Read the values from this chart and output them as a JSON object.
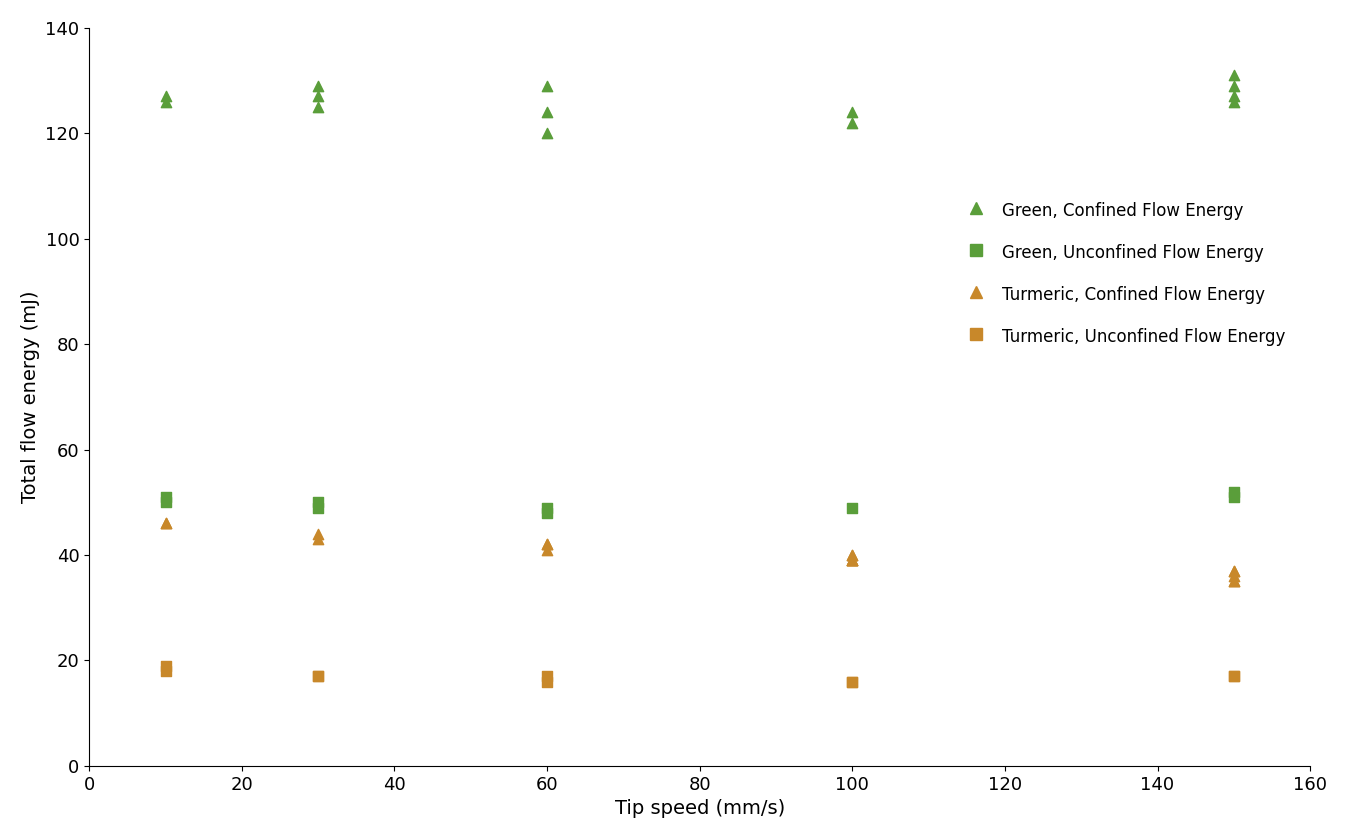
{
  "green_confined_x": [
    10,
    10,
    30,
    30,
    30,
    60,
    60,
    60,
    100,
    100,
    150,
    150,
    150,
    150
  ],
  "green_confined_y": [
    127,
    126,
    129,
    127,
    125,
    129,
    124,
    120,
    124,
    122,
    131,
    129,
    127,
    126
  ],
  "green_unconfined_x": [
    10,
    10,
    30,
    30,
    60,
    60,
    100,
    150,
    150
  ],
  "green_unconfined_y": [
    51,
    50,
    50,
    49,
    49,
    48,
    49,
    52,
    51
  ],
  "turmeric_confined_x": [
    10,
    10,
    30,
    30,
    60,
    60,
    60,
    100,
    100,
    100,
    100,
    100,
    100,
    150,
    150,
    150,
    150,
    150
  ],
  "turmeric_confined_y": [
    46,
    46,
    44,
    43,
    42,
    42,
    41,
    40,
    40,
    39,
    39,
    39,
    39,
    37,
    37,
    36,
    35,
    35
  ],
  "turmeric_unconfined_x": [
    10,
    10,
    30,
    30,
    60,
    60,
    100,
    100,
    150,
    150
  ],
  "turmeric_unconfined_y": [
    19,
    18,
    17,
    17,
    17,
    16,
    16,
    16,
    17,
    17
  ],
  "green_color": "#5a9e3a",
  "turmeric_color": "#c8882a",
  "xlabel": "Tip speed (mm/s)",
  "ylabel": "Total flow energy (mJ)",
  "xlim": [
    0,
    160
  ],
  "ylim": [
    0,
    140
  ],
  "xticks": [
    0,
    20,
    40,
    60,
    80,
    100,
    120,
    140,
    160
  ],
  "yticks": [
    0,
    20,
    40,
    60,
    80,
    100,
    120,
    140
  ],
  "legend_entries": [
    "Green, Confined Flow Energy",
    "Green, Unconfined Flow Energy",
    "Turmeric, Confined Flow Energy",
    "Turmeric, Unconfined Flow Energy"
  ],
  "marker_size": 55,
  "background_color": "#ffffff",
  "font_family": "DejaVu Sans",
  "axis_label_fontsize": 14,
  "tick_fontsize": 13,
  "legend_fontsize": 12
}
